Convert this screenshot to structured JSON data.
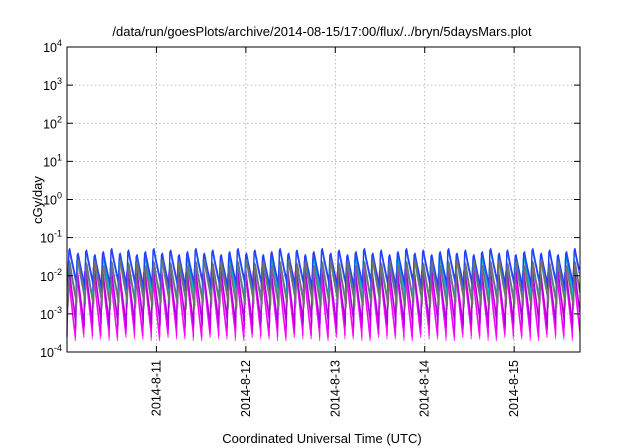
{
  "chart_data": {
    "type": "line",
    "title": "/data/run/goesPlots/archive/2014-08-15/17:00/flux/../bryn/5daysMars.plot",
    "xlabel": "Coordinated Universal Time (UTC)",
    "ylabel": "cGy/day",
    "y_scale": "log",
    "ylim": [
      0.0001,
      10000
    ],
    "y_ticks": [
      {
        "base": "10",
        "exp": "-4",
        "value": 0.0001
      },
      {
        "base": "10",
        "exp": "-3",
        "value": 0.001
      },
      {
        "base": "10",
        "exp": "-2",
        "value": 0.01
      },
      {
        "base": "10",
        "exp": "-1",
        "value": 0.1
      },
      {
        "base": "10",
        "exp": "0",
        "value": 1
      },
      {
        "base": "10",
        "exp": "1",
        "value": 10
      },
      {
        "base": "10",
        "exp": "2",
        "value": 100
      },
      {
        "base": "10",
        "exp": "3",
        "value": 1000
      },
      {
        "base": "10",
        "exp": "4",
        "value": 10000
      }
    ],
    "xlim": [
      "2014-08-10 00:00",
      "2014-08-15 17:40"
    ],
    "x_ticks": [
      {
        "label": "2014-8-11",
        "value": "2014-08-11 00:00"
      },
      {
        "label": "2014-8-12",
        "value": "2014-08-12 00:00"
      },
      {
        "label": "2014-8-13",
        "value": "2014-08-13 00:00"
      },
      {
        "label": "2014-8-14",
        "value": "2014-08-14 00:00"
      },
      {
        "label": "2014-8-15",
        "value": "2014-08-15 00:00"
      }
    ],
    "grid": true,
    "legend": "none",
    "pattern": {
      "description_period_hours": 2.26,
      "bands": [
        {
          "color": "#ff00ff",
          "low": 0.0003,
          "high": 0.02
        },
        {
          "color": "#b000e0",
          "low": 0.0006,
          "high": 0.025
        },
        {
          "color": "#00c0c0",
          "low": 0.003,
          "high": 0.035
        },
        {
          "color": "#2040ff",
          "low": 0.006,
          "high": 0.055
        },
        {
          "color": "#707070",
          "low": 0.002,
          "high": 0.03
        }
      ]
    }
  }
}
